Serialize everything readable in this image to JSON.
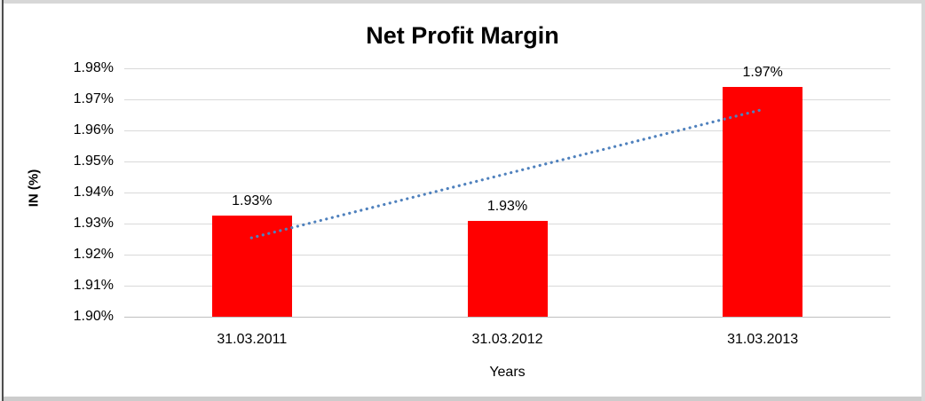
{
  "chart_data": {
    "type": "bar",
    "title": "Net Profit Margin",
    "xlabel": "Years",
    "ylabel": "IN (%)",
    "categories": [
      "31.03.2011",
      "31.03.2012",
      "31.03.2013"
    ],
    "values": [
      1.9325,
      1.931,
      1.974
    ],
    "data_labels": [
      "1.93%",
      "1.93%",
      "1.97%"
    ],
    "ylim": [
      1.9,
      1.98
    ],
    "yticks": [
      {
        "value": 1.98,
        "label": "1.98%"
      },
      {
        "value": 1.97,
        "label": "1.97%"
      },
      {
        "value": 1.96,
        "label": "1.96%"
      },
      {
        "value": 1.95,
        "label": "1.95%"
      },
      {
        "value": 1.94,
        "label": "1.94%"
      },
      {
        "value": 1.93,
        "label": "1.93%"
      },
      {
        "value": 1.92,
        "label": "1.92%"
      },
      {
        "value": 1.91,
        "label": "1.91%"
      },
      {
        "value": 1.9,
        "label": "1.90%"
      }
    ],
    "grid": true,
    "legend": false,
    "bar_color": "#ff0000",
    "gridline_color": "#d9d9d9",
    "baseline_color": "#bfbfbf",
    "text_color": "#000000",
    "trendline": {
      "style": "dotted",
      "color": "#4f81bd",
      "x_start_frac": 0.166,
      "value_start": 1.9254,
      "x_end_frac": 0.831,
      "value_end": 1.9666
    }
  }
}
